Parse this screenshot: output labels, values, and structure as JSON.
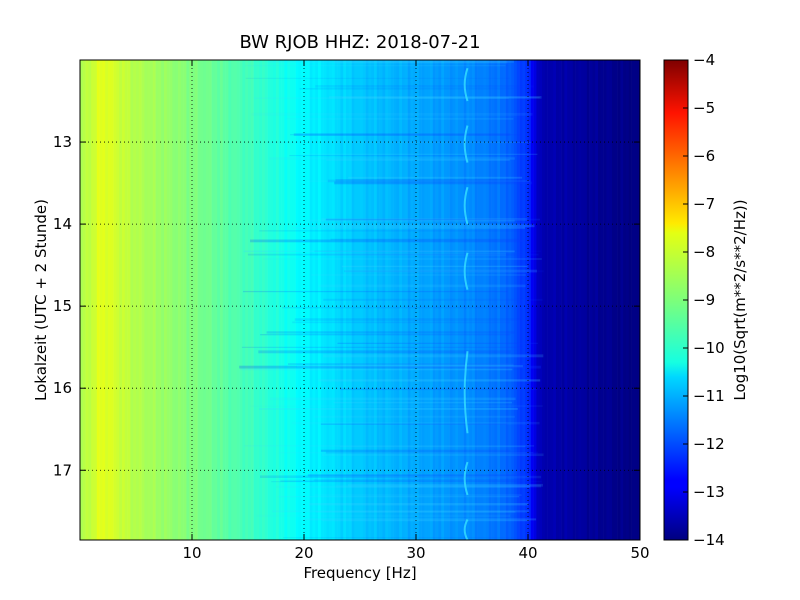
{
  "chart_data": {
    "type": "heatmap",
    "title": "BW RJOB HHZ: 2018-07-21",
    "xlabel": "Frequency [Hz]",
    "ylabel": "Lokalzeit (UTC + 2 Stunde)",
    "xlim": [
      0,
      50
    ],
    "ylim": [
      12.0,
      17.85
    ],
    "y_inverted": true,
    "x_ticks": [
      "10",
      "20",
      "30",
      "40",
      "50"
    ],
    "y_ticks": [
      "13",
      "14",
      "15",
      "16",
      "17"
    ],
    "grid": true,
    "colormap": "jet",
    "colorbar": {
      "label": "Log10(Sqrt(m**2/s**2/Hz))",
      "range": [
        -14,
        -4
      ],
      "ticks": [
        "−4",
        "−5",
        "−6",
        "−7",
        "−8",
        "−9",
        "−10",
        "−11",
        "−12",
        "−13",
        "−14"
      ]
    },
    "frequency_profile": [
      {
        "freq": 0,
        "value": -8.6
      },
      {
        "freq": 2,
        "value": -8.0
      },
      {
        "freq": 5,
        "value": -8.5
      },
      {
        "freq": 10,
        "value": -9.0
      },
      {
        "freq": 15,
        "value": -9.6
      },
      {
        "freq": 20,
        "value": -10.3
      },
      {
        "freq": 25,
        "value": -10.8
      },
      {
        "freq": 30,
        "value": -11.1
      },
      {
        "freq": 35,
        "value": -11.4
      },
      {
        "freq": 38,
        "value": -11.7
      },
      {
        "freq": 40,
        "value": -12.3
      },
      {
        "freq": 41,
        "value": -13.5
      },
      {
        "freq": 50,
        "value": -14.0
      }
    ]
  }
}
